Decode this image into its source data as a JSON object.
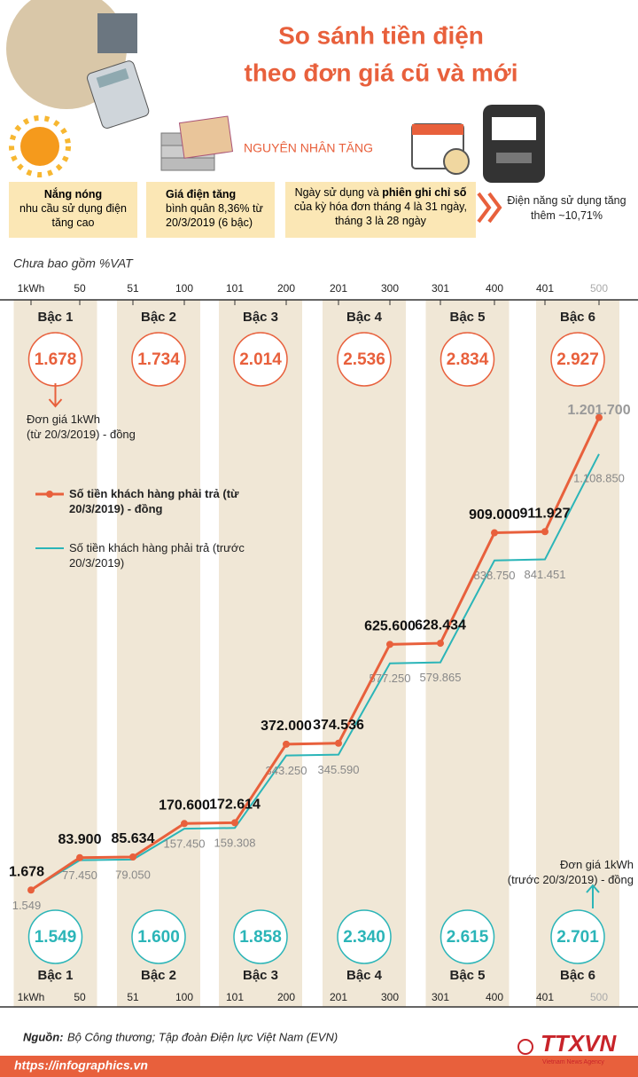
{
  "header": {
    "title": [
      "So sánh tiền điện",
      "theo đơn giá cũ và mới"
    ]
  },
  "causes": {
    "heading": "NGUYÊN NHÂN TĂNG",
    "items": [
      {
        "bold": "Nắng nóng",
        "text": "nhu cầu sử dụng điện tăng cao"
      },
      {
        "bold": "Giá điện tăng",
        "text": "bình quân 8,36% từ 20/3/2019 (6 bậc)"
      }
    ],
    "billing": [
      "Ngày sử dụng và ",
      "phiên ghi chỉ số",
      " của kỳ hóa đơn tháng 4 là 31 ngày, tháng 3 là 28 ngày"
    ],
    "energy": "Điện năng sử dụng tăng thêm ~10,71%"
  },
  "note": "Chưa bao gồm %VAT",
  "chart_data": {
    "type": "line",
    "categories": [
      "1kWh",
      "50",
      "51",
      "100",
      "101",
      "200",
      "201",
      "300",
      "301",
      "400",
      "401",
      "500"
    ],
    "ylim": [
      0,
      1300000
    ],
    "series": [
      {
        "name": "Số tiền khách hàng phải trả (từ 20/3/2019) - đồng",
        "color": "#e8603c",
        "values": [
          1678,
          83900,
          85634,
          170600,
          172614,
          372000,
          374536,
          625600,
          628434,
          909000,
          911927,
          1201700
        ],
        "value_labels": [
          "1.678",
          "83.900",
          "85.634",
          "170.600",
          "172.614",
          "372.000",
          "374.536",
          "625.600",
          "628.434",
          "909.000",
          "911.927",
          "1.201.700"
        ]
      },
      {
        "name": "Số tiền khách hàng phải trả (trước 20/3/2019)",
        "color": "#2bb5b8",
        "values": [
          1549,
          77450,
          79050,
          157450,
          159308,
          343250,
          345590,
          577250,
          579865,
          838750,
          841451,
          1108850
        ],
        "value_labels": [
          "1.549",
          "77.450",
          "79.050",
          "157.450",
          "159.308",
          "343.250",
          "345.590",
          "577.250",
          "579.865",
          "838.750",
          "841.451",
          "1.108.850"
        ]
      }
    ],
    "tiers": [
      "Bậc 1",
      "Bậc 2",
      "Bậc 3",
      "Bậc 4",
      "Bậc 5",
      "Bậc 6"
    ],
    "unit_price_new": {
      "color": "#e8603c",
      "values": [
        1678,
        1734,
        2014,
        2536,
        2834,
        2927
      ],
      "value_labels": [
        "1.678",
        "1.734",
        "2.014",
        "2.536",
        "2.834",
        "2.927"
      ],
      "note": [
        "Đơn giá 1kWh",
        "(từ 20/3/2019) - đồng"
      ]
    },
    "unit_price_old": {
      "color": "#2bb5b8",
      "values": [
        1549,
        1600,
        1858,
        2340,
        2615,
        2701
      ],
      "value_labels": [
        "1.549",
        "1.600",
        "1.858",
        "2.340",
        "2.615",
        "2.701"
      ],
      "note": [
        "Đơn giá 1kWh",
        "(trước 20/3/2019) - đồng"
      ]
    }
  },
  "footer": {
    "source_label": "Nguồn:",
    "source": "Bộ Công thương; Tập đoàn Điện lực Việt Nam (EVN)",
    "url": "https://infographics.vn",
    "logo": "TTXVN",
    "logo_sub": "Vietnam News Agency"
  }
}
